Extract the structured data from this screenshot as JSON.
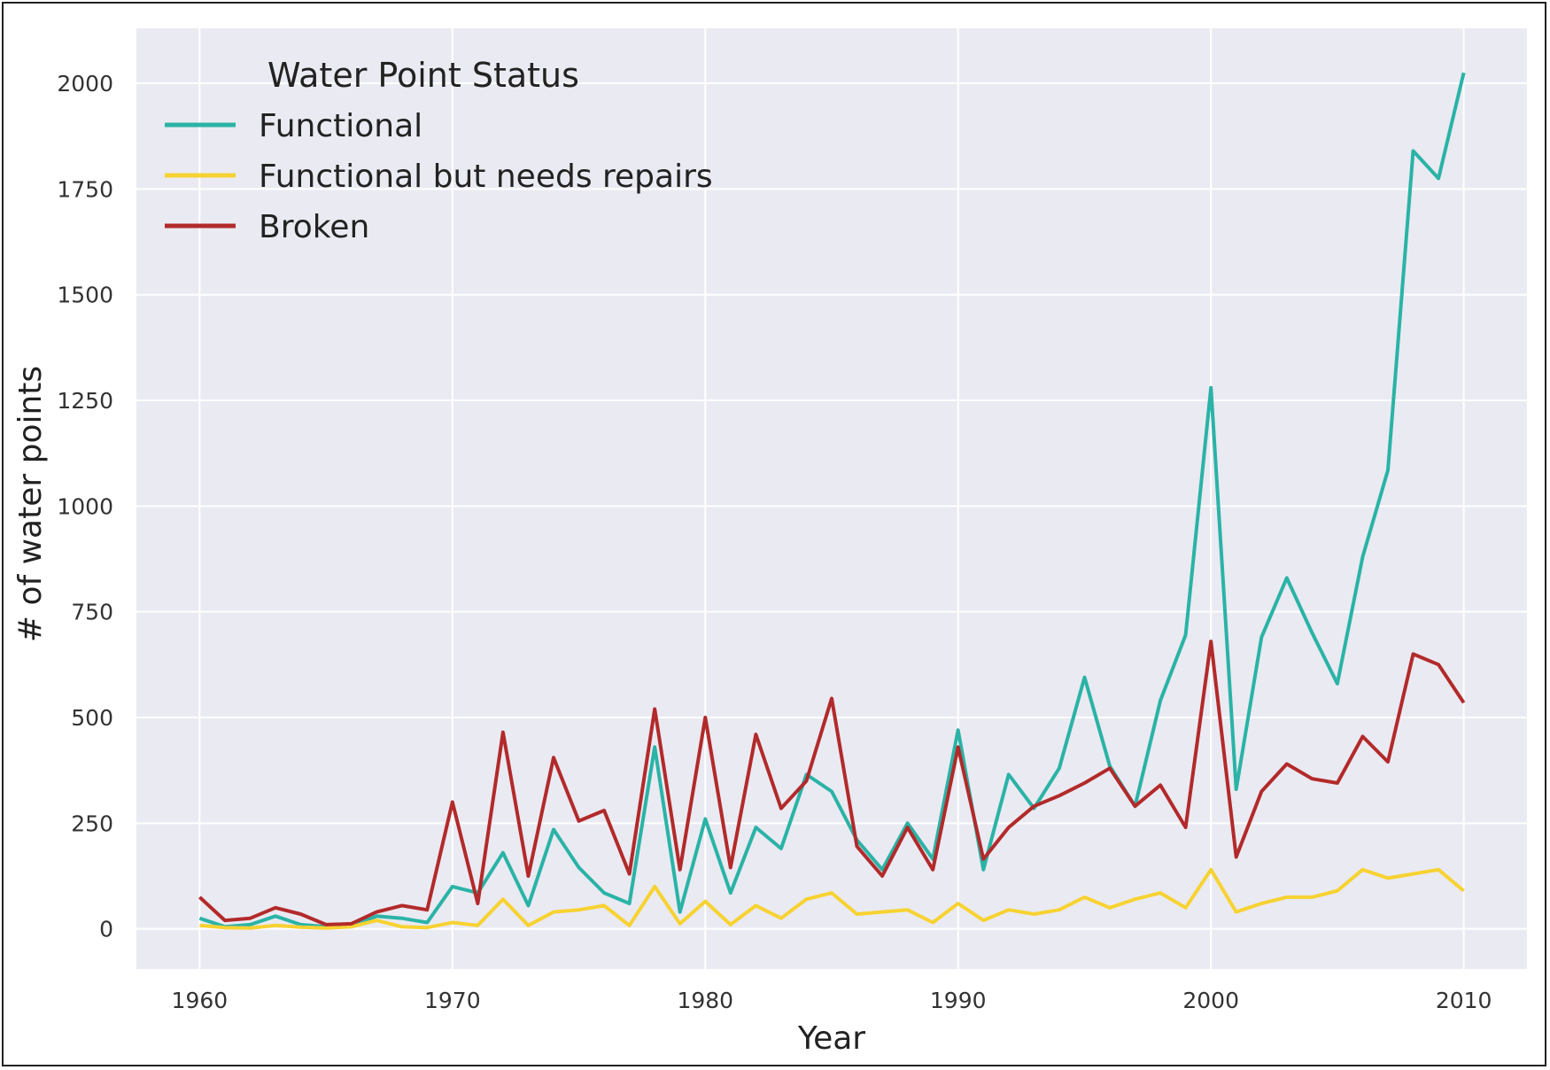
{
  "chart_data": {
    "type": "line",
    "title": "",
    "xlabel": "Year",
    "ylabel": "# of water points",
    "xlim": [
      1957.5,
      2012.5
    ],
    "ylim": [
      -95,
      2130
    ],
    "grid": true,
    "legend": {
      "title": "Water Point Status",
      "placement": "top-left"
    },
    "x_ticks": [
      1960,
      1970,
      1980,
      1990,
      2000,
      2010
    ],
    "y_ticks": [
      0,
      250,
      500,
      750,
      1000,
      1250,
      1500,
      1750,
      2000
    ],
    "x": [
      1960,
      1961,
      1962,
      1963,
      1964,
      1965,
      1966,
      1967,
      1968,
      1969,
      1970,
      1971,
      1972,
      1973,
      1974,
      1975,
      1976,
      1977,
      1978,
      1979,
      1980,
      1981,
      1982,
      1983,
      1984,
      1985,
      1986,
      1987,
      1988,
      1989,
      1990,
      1991,
      1992,
      1993,
      1994,
      1995,
      1996,
      1997,
      1998,
      1999,
      2000,
      2001,
      2002,
      2003,
      2004,
      2005,
      2006,
      2007,
      2008,
      2009,
      2010
    ],
    "series": [
      {
        "name": "Functional",
        "color": "#2ab3a6",
        "values": [
          25,
          5,
          10,
          30,
          10,
          5,
          5,
          30,
          25,
          15,
          100,
          85,
          180,
          55,
          235,
          145,
          85,
          60,
          430,
          40,
          260,
          85,
          240,
          190,
          365,
          325,
          210,
          140,
          250,
          165,
          470,
          140,
          365,
          285,
          380,
          595,
          385,
          290,
          540,
          695,
          1280,
          330,
          690,
          830,
          700,
          580,
          880,
          1085,
          1840,
          1775,
          2025
        ]
      },
      {
        "name": "Functional but needs repairs",
        "color": "#f7d231",
        "values": [
          8,
          3,
          2,
          8,
          4,
          2,
          5,
          20,
          5,
          3,
          15,
          8,
          70,
          8,
          40,
          45,
          55,
          8,
          100,
          12,
          65,
          10,
          55,
          25,
          70,
          85,
          35,
          40,
          45,
          15,
          60,
          20,
          45,
          35,
          45,
          75,
          50,
          70,
          85,
          50,
          140,
          40,
          60,
          75,
          75,
          90,
          140,
          120,
          130,
          140,
          90
        ]
      },
      {
        "name": "Broken",
        "color": "#b22a2a",
        "values": [
          75,
          20,
          25,
          50,
          35,
          10,
          12,
          40,
          55,
          45,
          300,
          60,
          465,
          125,
          405,
          255,
          280,
          130,
          520,
          140,
          500,
          145,
          460,
          285,
          350,
          545,
          195,
          125,
          240,
          140,
          430,
          165,
          240,
          290,
          315,
          345,
          380,
          290,
          340,
          240,
          680,
          170,
          325,
          390,
          355,
          345,
          455,
          395,
          650,
          625,
          535
        ]
      }
    ]
  }
}
